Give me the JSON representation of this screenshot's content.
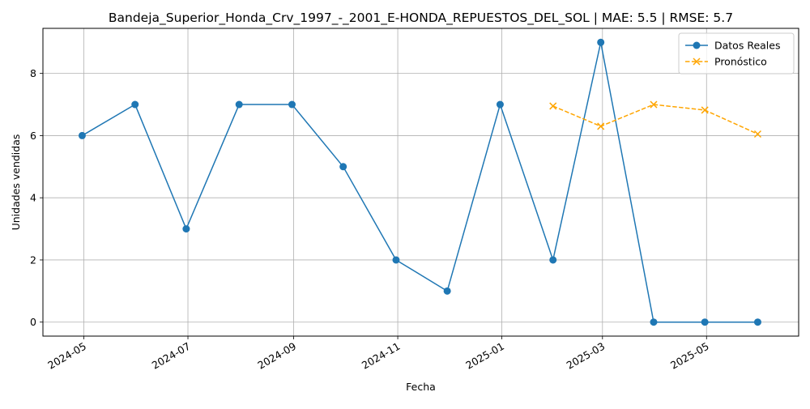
{
  "chart_data": {
    "type": "line",
    "title": "Bandeja_Superior_Honda_Crv_1997_-_2001_E-HONDA_REPUESTOS_DEL_SOL | MAE: 5.5 | RMSE: 5.7",
    "xlabel": "Fecha",
    "ylabel": "Unidades vendidas",
    "x_tick_labels": [
      "2024-05",
      "2024-07",
      "2024-09",
      "2024-11",
      "2025-01",
      "2025-03",
      "2025-05"
    ],
    "x_ticks": [
      "2024-05-01",
      "2024-07-01",
      "2024-09-01",
      "2024-11-01",
      "2025-01-01",
      "2025-03-01",
      "2025-05-01"
    ],
    "y_ticks": [
      0,
      2,
      4,
      6,
      8
    ],
    "xlim": [
      "2024-04-07",
      "2025-06-24"
    ],
    "ylim": [
      -0.45,
      9.45
    ],
    "grid": true,
    "legend_position": "top-right",
    "series": [
      {
        "name": "Datos Reales",
        "color": "#1f77b4",
        "line_style": "solid",
        "marker": "circle",
        "x": [
          "2024-04-30",
          "2024-05-31",
          "2024-06-30",
          "2024-07-31",
          "2024-08-31",
          "2024-09-30",
          "2024-10-31",
          "2024-11-30",
          "2024-12-31",
          "2025-01-31",
          "2025-02-28",
          "2025-03-31",
          "2025-04-30",
          "2025-05-31"
        ],
        "values": [
          6,
          7,
          3,
          7,
          7,
          5,
          2,
          1,
          7,
          2,
          9,
          0,
          0,
          0
        ]
      },
      {
        "name": "Pronóstico",
        "color": "#ffa500",
        "line_style": "dashed",
        "marker": "x",
        "x": [
          "2025-01-31",
          "2025-02-28",
          "2025-03-31",
          "2025-04-30",
          "2025-05-31"
        ],
        "values": [
          6.95,
          6.3,
          7.0,
          6.82,
          6.05
        ]
      }
    ]
  }
}
